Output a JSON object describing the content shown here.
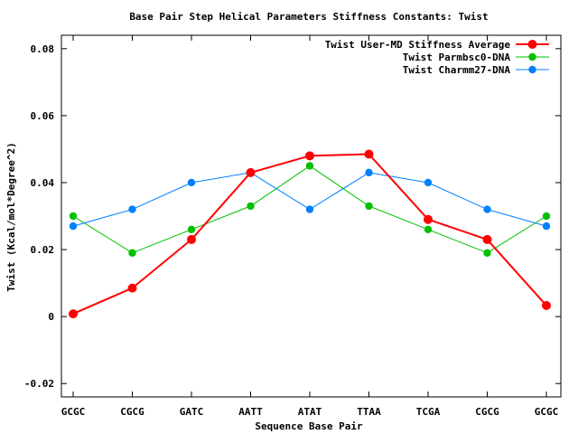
{
  "chart_data": {
    "type": "line",
    "title": "Base Pair Step Helical Parameters Stiffness Constants: Twist",
    "xlabel": "Sequence Base Pair",
    "ylabel": "Twist (Kcal/mol*Degree^2)",
    "categories": [
      "GCGC",
      "CGCG",
      "GATC",
      "AATT",
      "ATAT",
      "TTAA",
      "TCGA",
      "CGCG",
      "GCGC"
    ],
    "ylim": [
      -0.024,
      0.084
    ],
    "yticks": [
      -0.02,
      0,
      0.02,
      0.04,
      0.06,
      0.08
    ],
    "ytick_labels": [
      "-0.02",
      "0",
      "0.02",
      "0.04",
      "0.06",
      "0.08"
    ],
    "grid": false,
    "legend_position": "top-right",
    "series": [
      {
        "name": "Twist User-MD Stiffness Average",
        "color": "#ff0000",
        "width": "thick",
        "values": [
          0.0008,
          0.0085,
          0.023,
          0.043,
          0.048,
          0.0485,
          0.029,
          0.023,
          0.0033
        ]
      },
      {
        "name": "Twist Parmbsc0-DNA",
        "color": "#00c000",
        "width": "thin",
        "values": [
          0.03,
          0.019,
          0.026,
          0.033,
          0.045,
          0.033,
          0.026,
          0.019,
          0.03
        ]
      },
      {
        "name": "Twist Charmm27-DNA",
        "color": "#0080ff",
        "width": "thin",
        "values": [
          0.027,
          0.032,
          0.04,
          0.043,
          0.032,
          0.043,
          0.04,
          0.032,
          0.027
        ]
      }
    ]
  }
}
